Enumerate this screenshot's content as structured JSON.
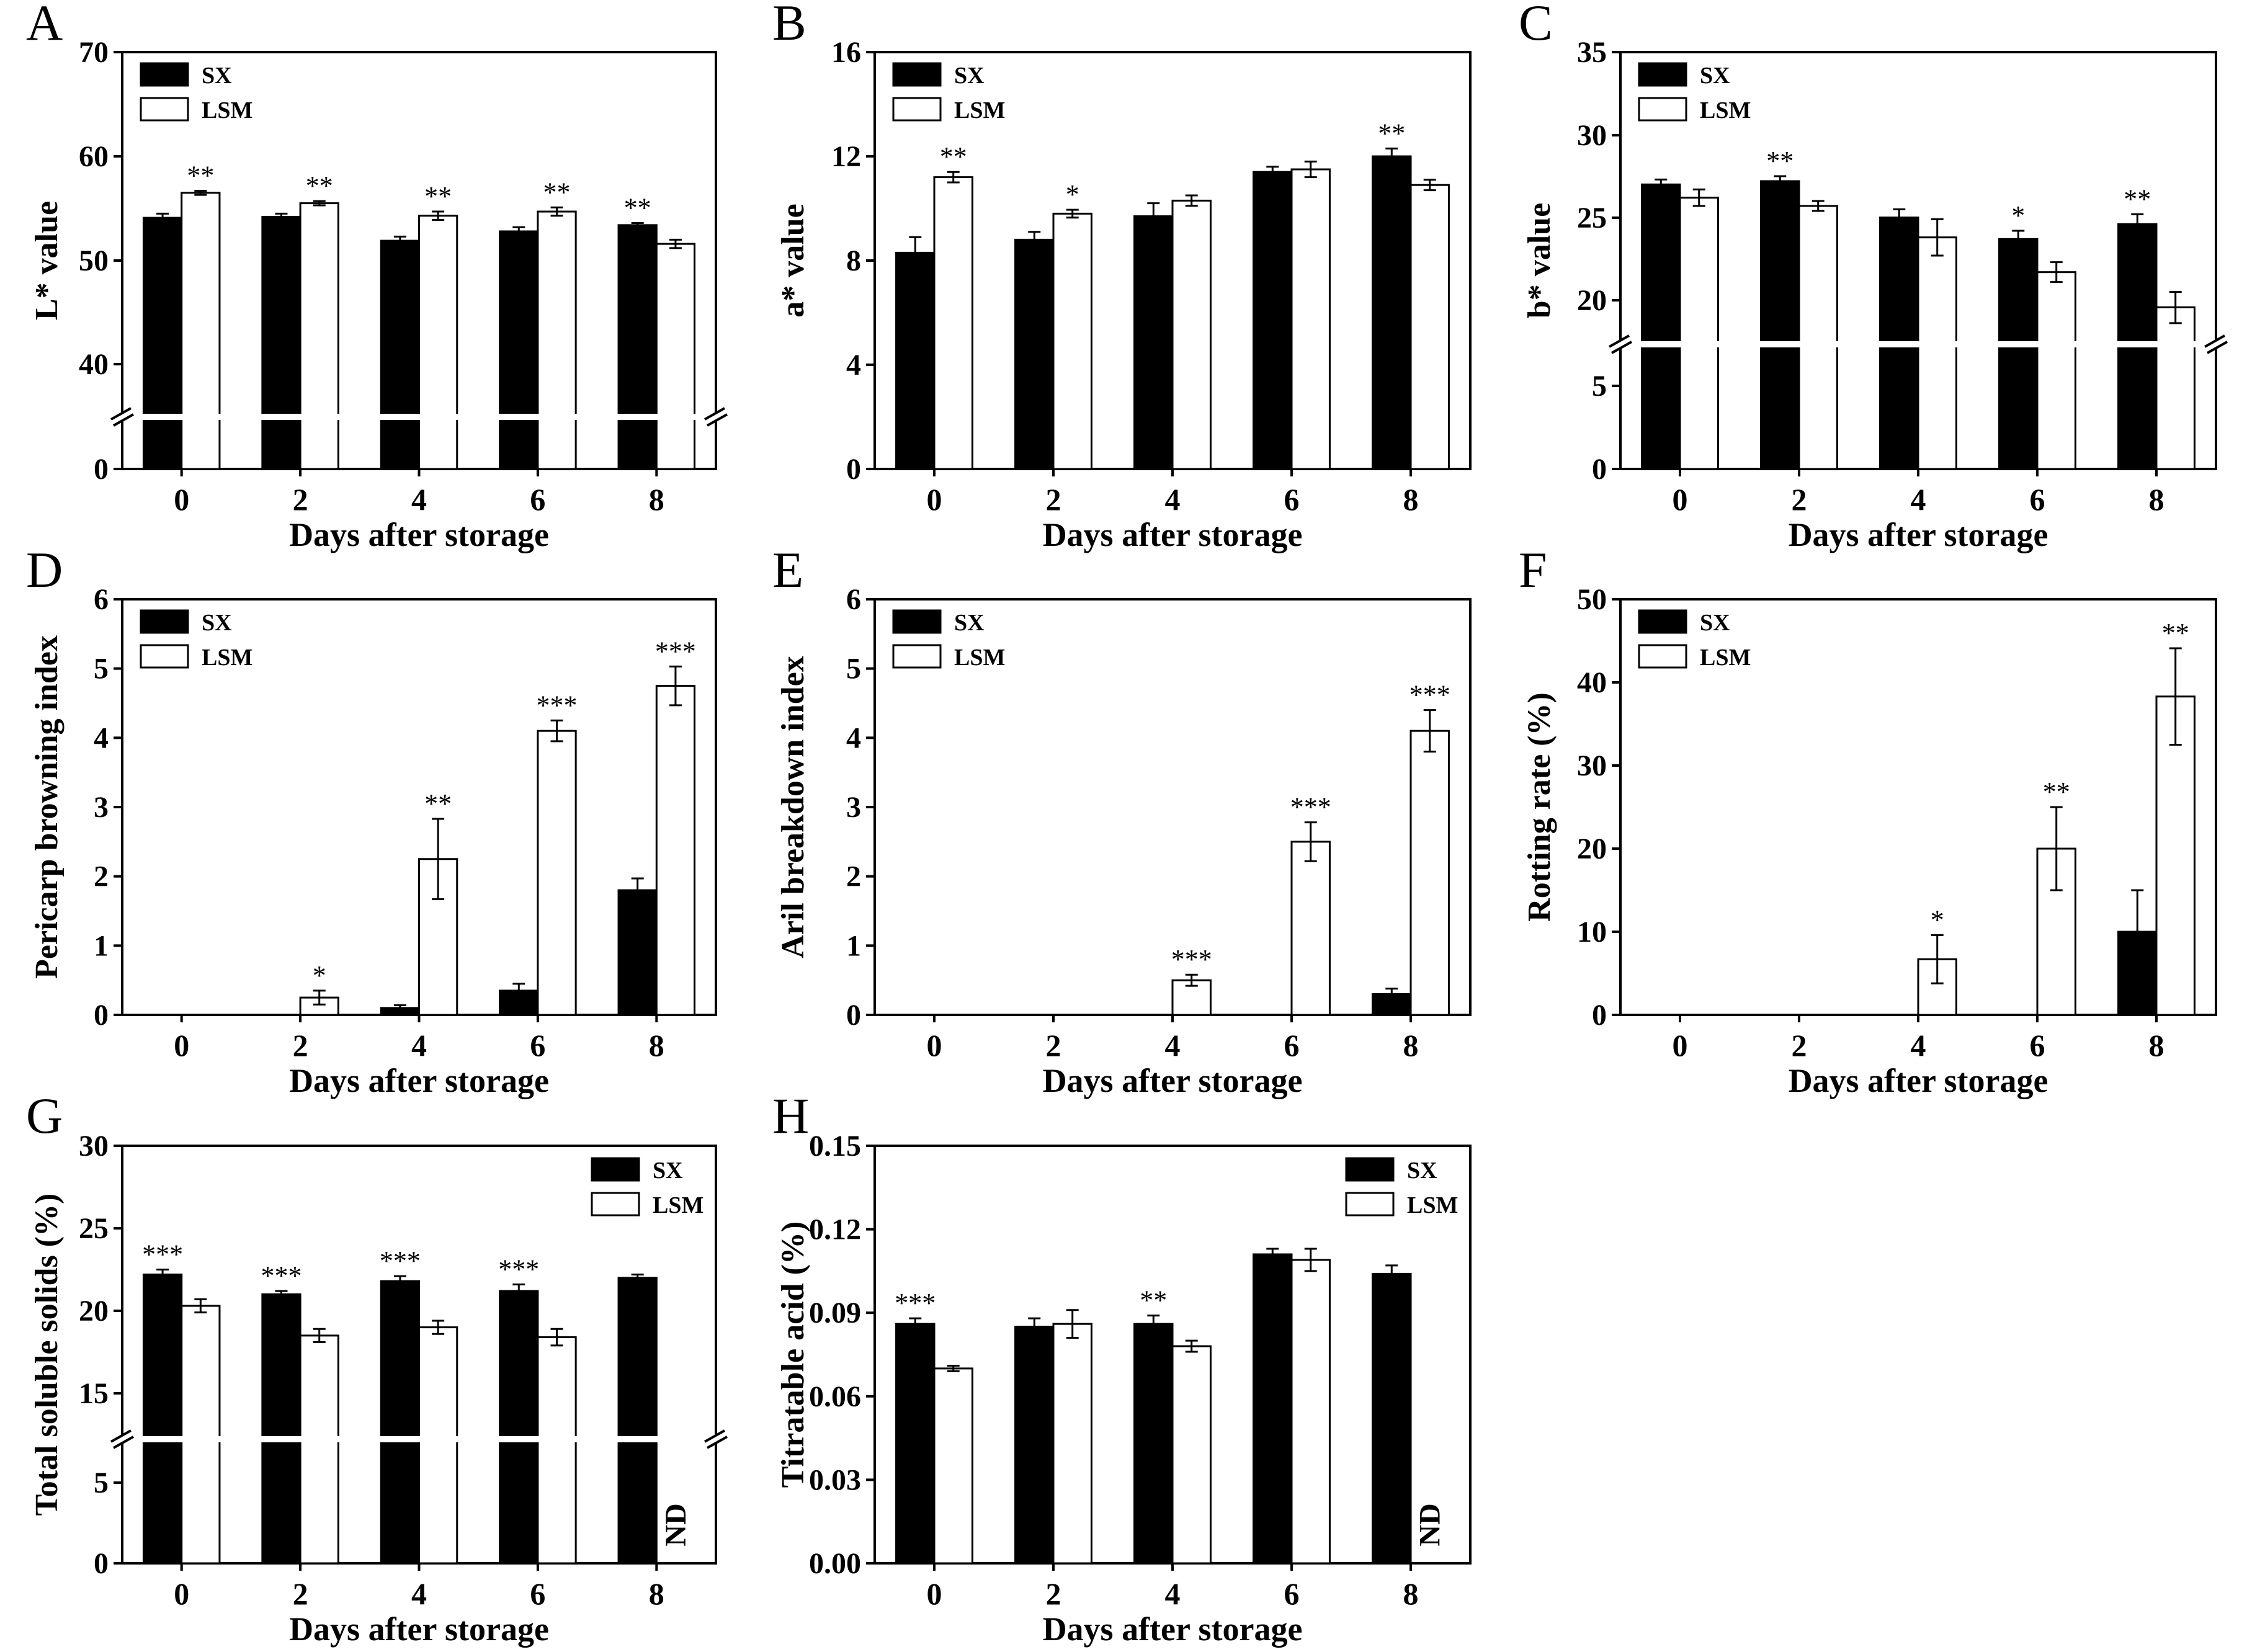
{
  "figure": {
    "series_names": [
      "SX",
      "LSM"
    ],
    "colors": {
      "SX": "#000000",
      "LSM": "#ffffff",
      "axis": "#000000"
    }
  },
  "chart_data": [
    {
      "panel": "A",
      "type": "bar",
      "xlabel": "Days after storage",
      "ylabel": "L* value",
      "categories": [
        "0",
        "2",
        "4",
        "6",
        "8"
      ],
      "axis_break": true,
      "yticks": [
        0,
        40,
        50,
        60,
        70
      ],
      "series": [
        {
          "name": "SX",
          "values": [
            54.1,
            54.2,
            51.9,
            52.8,
            53.4
          ],
          "errors": [
            0.4,
            0.3,
            0.4,
            0.4,
            0.2
          ]
        },
        {
          "name": "LSM",
          "values": [
            56.5,
            55.5,
            54.3,
            54.7,
            51.6
          ],
          "errors": [
            0.2,
            0.2,
            0.4,
            0.4,
            0.4
          ]
        }
      ],
      "annotations": [
        {
          "category": 0,
          "series": "LSM",
          "text": "**"
        },
        {
          "category": 1,
          "series": "LSM",
          "text": "**"
        },
        {
          "category": 2,
          "series": "LSM",
          "text": "**"
        },
        {
          "category": 3,
          "series": "LSM",
          "text": "**"
        },
        {
          "category": 4,
          "series": "SX",
          "text": "**"
        }
      ],
      "legend": "top-left"
    },
    {
      "panel": "B",
      "type": "bar",
      "xlabel": "Days after storage",
      "ylabel": "a* value",
      "categories": [
        "0",
        "2",
        "4",
        "6",
        "8"
      ],
      "axis_break": false,
      "ylim": [
        0,
        16
      ],
      "yticks": [
        0,
        4,
        8,
        12,
        16
      ],
      "series": [
        {
          "name": "SX",
          "values": [
            8.3,
            8.8,
            9.7,
            11.4,
            12.0
          ],
          "errors": [
            0.6,
            0.3,
            0.5,
            0.2,
            0.3
          ]
        },
        {
          "name": "LSM",
          "values": [
            11.2,
            9.8,
            10.3,
            11.5,
            10.9
          ],
          "errors": [
            0.2,
            0.15,
            0.2,
            0.3,
            0.2
          ]
        }
      ],
      "annotations": [
        {
          "category": 0,
          "series": "LSM",
          "text": "**"
        },
        {
          "category": 1,
          "series": "LSM",
          "text": "*"
        },
        {
          "category": 4,
          "series": "SX",
          "text": "**"
        }
      ],
      "legend": "top-left"
    },
    {
      "panel": "C",
      "type": "bar",
      "xlabel": "Days after storage",
      "ylabel": "b* value",
      "categories": [
        "0",
        "2",
        "4",
        "6",
        "8"
      ],
      "axis_break": true,
      "yticks": [
        0,
        5,
        20,
        25,
        30,
        35
      ],
      "series": [
        {
          "name": "SX",
          "values": [
            27.0,
            27.2,
            25.0,
            23.7,
            24.6
          ],
          "errors": [
            0.3,
            0.3,
            0.5,
            0.5,
            0.6
          ]
        },
        {
          "name": "LSM",
          "values": [
            26.2,
            25.7,
            23.8,
            21.7,
            19.6
          ],
          "errors": [
            0.5,
            0.3,
            1.1,
            0.6,
            0.9
          ]
        }
      ],
      "annotations": [
        {
          "category": 1,
          "series": "SX",
          "text": "**"
        },
        {
          "category": 3,
          "series": "SX",
          "text": "*"
        },
        {
          "category": 4,
          "series": "SX",
          "text": "**"
        }
      ],
      "legend": "top-left"
    },
    {
      "panel": "D",
      "type": "bar",
      "xlabel": "Days after storage",
      "ylabel": "Pericarp browning index",
      "categories": [
        "0",
        "2",
        "4",
        "6",
        "8"
      ],
      "axis_break": false,
      "ylim": [
        0,
        6
      ],
      "yticks": [
        0,
        1,
        2,
        3,
        4,
        5,
        6
      ],
      "series": [
        {
          "name": "SX",
          "values": [
            0,
            0,
            0.1,
            0.35,
            1.8
          ],
          "errors": [
            0,
            0,
            0.04,
            0.1,
            0.17
          ]
        },
        {
          "name": "LSM",
          "values": [
            0,
            0.25,
            2.25,
            4.1,
            4.75
          ],
          "errors": [
            0,
            0.1,
            0.58,
            0.15,
            0.28
          ]
        }
      ],
      "annotations": [
        {
          "category": 1,
          "series": "LSM",
          "text": "*"
        },
        {
          "category": 2,
          "series": "LSM",
          "text": "**"
        },
        {
          "category": 3,
          "series": "LSM",
          "text": "***"
        },
        {
          "category": 4,
          "series": "LSM",
          "text": "***"
        }
      ],
      "legend": "top-left"
    },
    {
      "panel": "E",
      "type": "bar",
      "xlabel": "Days after storage",
      "ylabel": "Aril breakdown index",
      "categories": [
        "0",
        "2",
        "4",
        "6",
        "8"
      ],
      "axis_break": false,
      "ylim": [
        0,
        6
      ],
      "yticks": [
        0,
        1,
        2,
        3,
        4,
        5,
        6
      ],
      "series": [
        {
          "name": "SX",
          "values": [
            0,
            0,
            0,
            0,
            0.3
          ],
          "errors": [
            0,
            0,
            0,
            0,
            0.08
          ]
        },
        {
          "name": "LSM",
          "values": [
            0,
            0,
            0.5,
            2.5,
            4.1
          ],
          "errors": [
            0,
            0,
            0.08,
            0.28,
            0.3
          ]
        }
      ],
      "annotations": [
        {
          "category": 2,
          "series": "LSM",
          "text": "***"
        },
        {
          "category": 3,
          "series": "LSM",
          "text": "***"
        },
        {
          "category": 4,
          "series": "LSM",
          "text": "***"
        }
      ],
      "legend": "top-left"
    },
    {
      "panel": "F",
      "type": "bar",
      "xlabel": "Days after storage",
      "ylabel": "Rotting rate (%)",
      "categories": [
        "0",
        "2",
        "4",
        "6",
        "8"
      ],
      "axis_break": false,
      "ylim": [
        0,
        50
      ],
      "yticks": [
        0,
        10,
        20,
        30,
        40,
        50
      ],
      "series": [
        {
          "name": "SX",
          "values": [
            0,
            0,
            0,
            0,
            10
          ],
          "errors": [
            0,
            0,
            0,
            0,
            5
          ]
        },
        {
          "name": "LSM",
          "values": [
            0,
            0,
            6.7,
            20,
            38.3
          ],
          "errors": [
            0,
            0,
            2.9,
            5,
            5.8
          ]
        }
      ],
      "annotations": [
        {
          "category": 2,
          "series": "LSM",
          "text": "*"
        },
        {
          "category": 3,
          "series": "LSM",
          "text": "**"
        },
        {
          "category": 4,
          "series": "LSM",
          "text": "**"
        }
      ],
      "legend": "top-left"
    },
    {
      "panel": "G",
      "type": "bar",
      "xlabel": "Days after storage",
      "ylabel": "Total soluble solids (%)",
      "categories": [
        "0",
        "2",
        "4",
        "6",
        "8"
      ],
      "axis_break": true,
      "yticks": [
        0,
        5,
        15,
        20,
        25,
        30
      ],
      "series": [
        {
          "name": "SX",
          "values": [
            22.2,
            21.0,
            21.8,
            21.2,
            22.0
          ],
          "errors": [
            0.3,
            0.2,
            0.3,
            0.4,
            0.2
          ]
        },
        {
          "name": "LSM",
          "values": [
            20.3,
            18.5,
            19.0,
            18.4,
            null
          ],
          "errors": [
            0.4,
            0.4,
            0.4,
            0.5,
            null
          ]
        }
      ],
      "annotations": [
        {
          "category": 0,
          "series": "SX",
          "text": "***"
        },
        {
          "category": 1,
          "series": "SX",
          "text": "***"
        },
        {
          "category": 2,
          "series": "SX",
          "text": "***"
        },
        {
          "category": 3,
          "series": "SX",
          "text": "***"
        }
      ],
      "nd_label": "ND",
      "legend": "top-right"
    },
    {
      "panel": "H",
      "type": "bar",
      "xlabel": "Days after storage",
      "ylabel": "Titratable acid (%)",
      "categories": [
        "0",
        "2",
        "4",
        "6",
        "8"
      ],
      "axis_break": false,
      "ylim": [
        0,
        0.15
      ],
      "yticks": [
        "0.00",
        "0.03",
        "0.06",
        "0.09",
        "0.12",
        "0.15"
      ],
      "series": [
        {
          "name": "SX",
          "values": [
            0.086,
            0.085,
            0.086,
            0.111,
            0.104
          ],
          "errors": [
            0.002,
            0.003,
            0.003,
            0.002,
            0.003
          ]
        },
        {
          "name": "LSM",
          "values": [
            0.07,
            0.086,
            0.078,
            0.109,
            null
          ],
          "errors": [
            0.001,
            0.005,
            0.002,
            0.004,
            null
          ]
        }
      ],
      "annotations": [
        {
          "category": 0,
          "series": "SX",
          "text": "***"
        },
        {
          "category": 2,
          "series": "SX",
          "text": "**"
        }
      ],
      "nd_label": "ND",
      "legend": "top-right"
    }
  ]
}
